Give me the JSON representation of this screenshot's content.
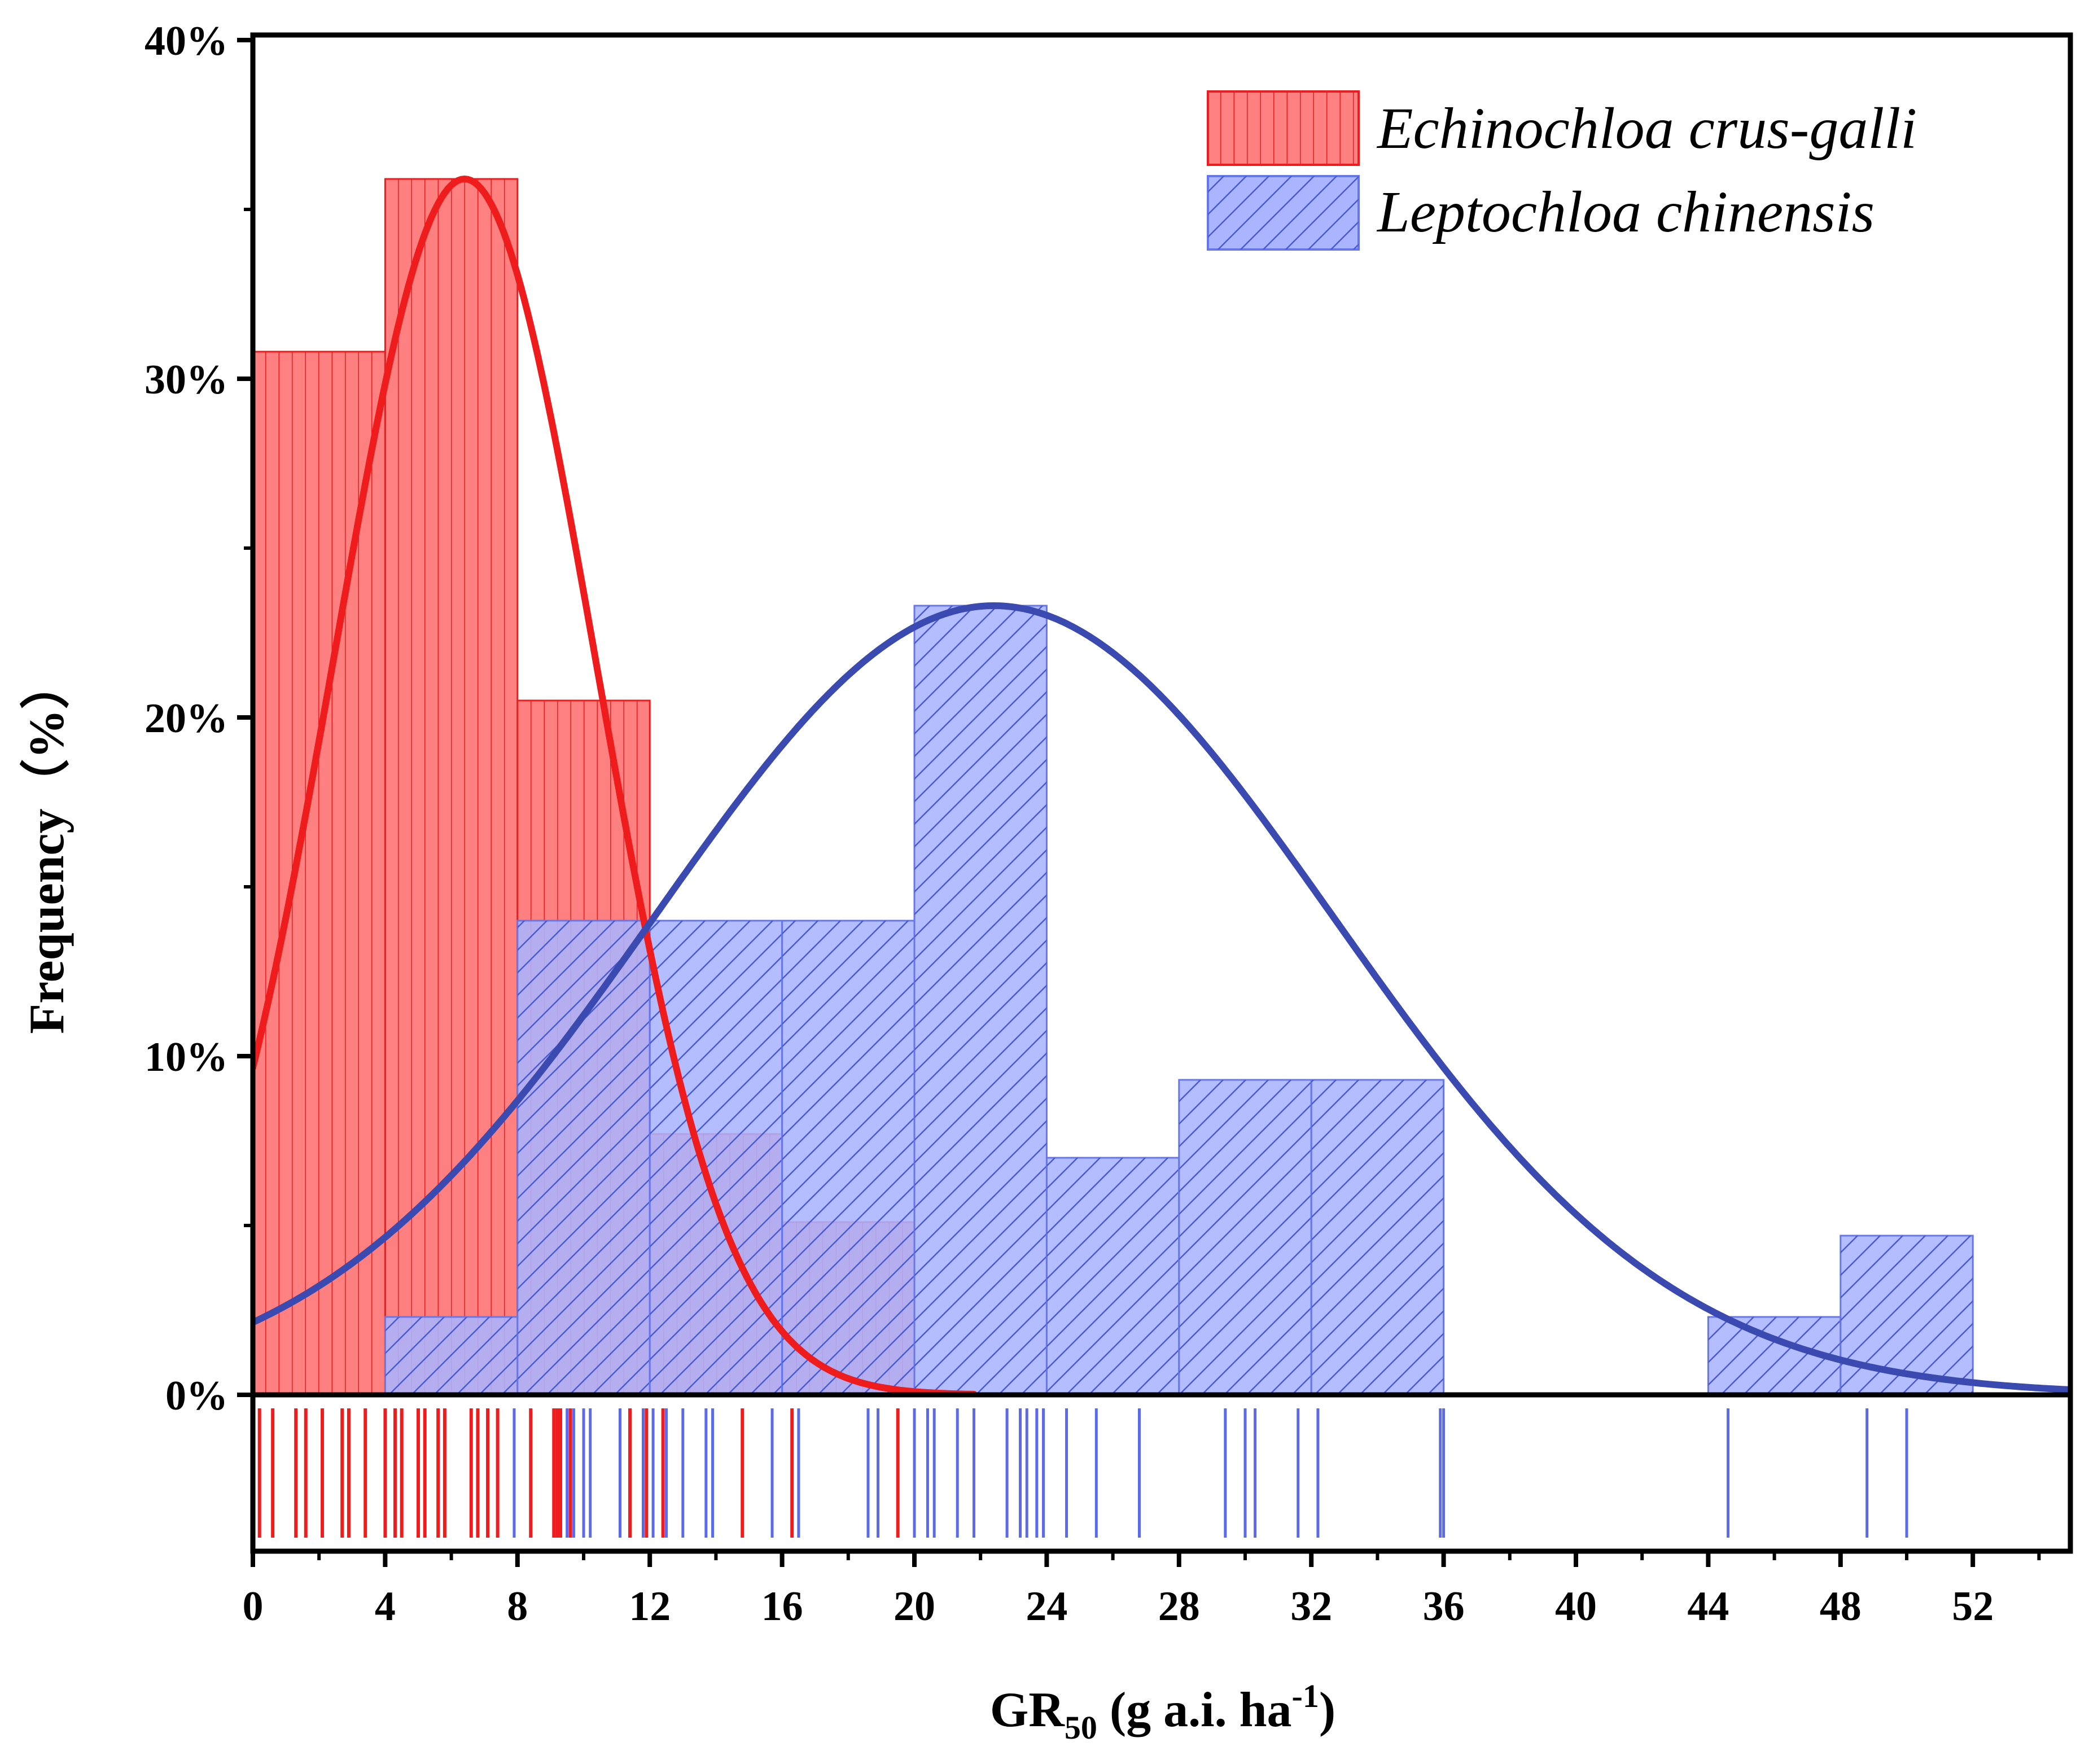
{
  "chart_data": {
    "type": "histogram",
    "xlabel": {
      "main": "GR",
      "sub": "50",
      "unit_pre": " (g a.i. ha",
      "sup": "-1",
      "unit_post": ")"
    },
    "ylabel": "Frequency（%）",
    "xlim": [
      0,
      55
    ],
    "ylim": [
      0,
      40
    ],
    "x_ticks": [
      0,
      4,
      8,
      12,
      16,
      20,
      24,
      28,
      32,
      36,
      40,
      44,
      48,
      52
    ],
    "x_tick_labels": [
      "0",
      "4",
      "8",
      "12",
      "16",
      "20",
      "24",
      "28",
      "32",
      "36",
      "40",
      "44",
      "48",
      "52"
    ],
    "y_ticks": [
      0,
      10,
      20,
      30,
      40
    ],
    "y_tick_labels": [
      "0%",
      "10%",
      "20%",
      "30%",
      "40%"
    ],
    "bin_width": 4,
    "series": [
      {
        "name": "Echinochloa crus-galli",
        "color": "#ee1c1c",
        "fill": "#ff8080",
        "hatch": "vertical",
        "bins_start": [
          0,
          4,
          8,
          12,
          16
        ],
        "values": [
          30.8,
          35.9,
          20.5,
          7.7,
          5.1
        ],
        "fit": {
          "mean": 6.4,
          "peak": 35.9,
          "sd": 3.95,
          "x_end": 21.8
        },
        "rug": [
          0.2,
          0.6,
          1.3,
          1.6,
          2.1,
          2.7,
          2.9,
          3.4,
          4.0,
          4.3,
          4.5,
          5.0,
          5.2,
          5.6,
          5.8,
          6.6,
          6.8,
          7.1,
          7.4,
          8.4,
          9.1,
          9.2,
          9.3,
          9.6,
          11.4,
          11.9,
          12.4,
          14.8,
          16.3,
          19.5
        ]
      },
      {
        "name": "Leptochloa chinensis",
        "color": "#3a4ab0",
        "fill": "#aab4ff",
        "stroke": "#6677ee",
        "hatch": "diagonal",
        "bins_start": [
          4,
          8,
          12,
          16,
          20,
          24,
          28,
          32,
          44,
          48
        ],
        "values": [
          2.3,
          14.0,
          14.0,
          14.0,
          23.3,
          7.0,
          9.3,
          9.3,
          2.3,
          4.7
        ],
        "fit": {
          "mean": 22.4,
          "peak": 23.3,
          "sd": 10.25,
          "x_start": 0,
          "x_end": 55
        },
        "rug": [
          7.9,
          8.4,
          9.5,
          9.7,
          10.0,
          10.2,
          11.1,
          11.8,
          12.1,
          12.5,
          13.0,
          13.7,
          13.9,
          15.7,
          16.5,
          18.6,
          18.9,
          20.0,
          20.4,
          20.6,
          21.3,
          21.8,
          22.8,
          23.2,
          23.4,
          23.7,
          23.9,
          24.6,
          25.5,
          26.8,
          29.4,
          30.0,
          30.3,
          31.6,
          32.2,
          35.9,
          36.0,
          44.6,
          48.8,
          50.0
        ]
      }
    ],
    "legend": {
      "position": "top-right"
    }
  }
}
